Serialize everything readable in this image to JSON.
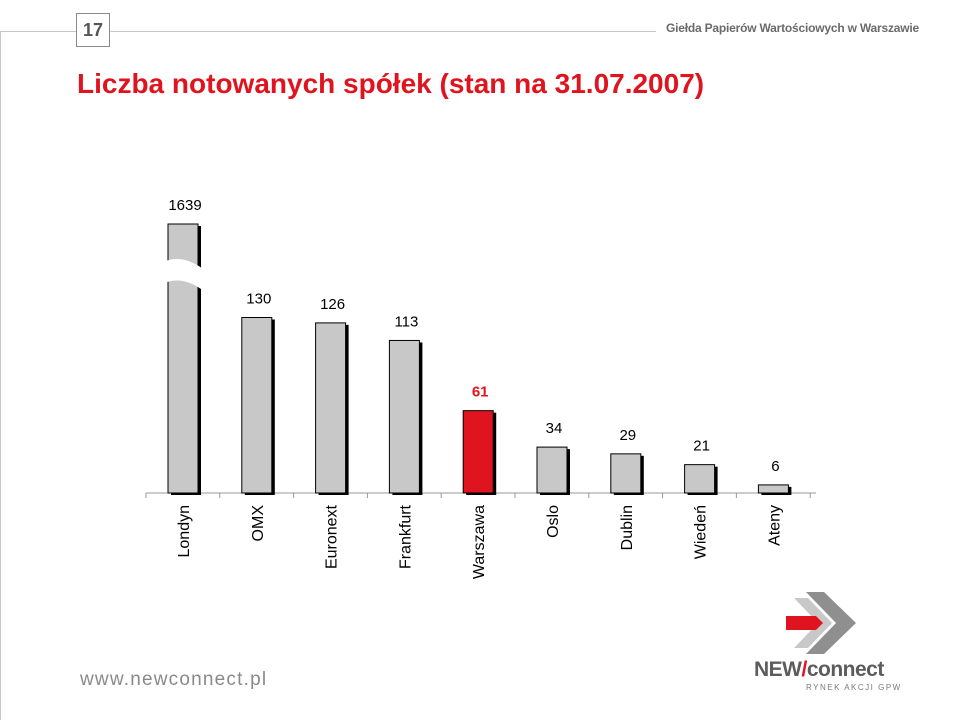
{
  "page": {
    "number": "17"
  },
  "header": {
    "brand": "Giełda Papierów Wartościowych w Warszawie"
  },
  "title": "Liczba notowanych spółek (stan na 31.07.2007)",
  "footer": {
    "url": "www.newconnect.pl",
    "logo_text_a": "NEW",
    "logo_text_slash": "/",
    "logo_text_b": "connect",
    "logo_sub": "RYNEK AKCJI GPW"
  },
  "colors": {
    "bar": "#c8c8c8",
    "highlight": "#e0141e",
    "title": "#e0141e",
    "shadow": "#000000"
  },
  "chart_data": {
    "type": "bar",
    "categories": [
      "Londyn",
      "OMX",
      "Euronext",
      "Frankfurt",
      "Warszawa",
      "Oslo",
      "Dublin",
      "Wiedeń",
      "Ateny"
    ],
    "values": [
      1639,
      130,
      126,
      113,
      61,
      34,
      29,
      21,
      6
    ],
    "highlight_category": "Warszawa",
    "axis_break": {
      "category": "Londyn"
    },
    "xlabel": "",
    "ylabel": "",
    "grid": false,
    "legend": "none"
  }
}
